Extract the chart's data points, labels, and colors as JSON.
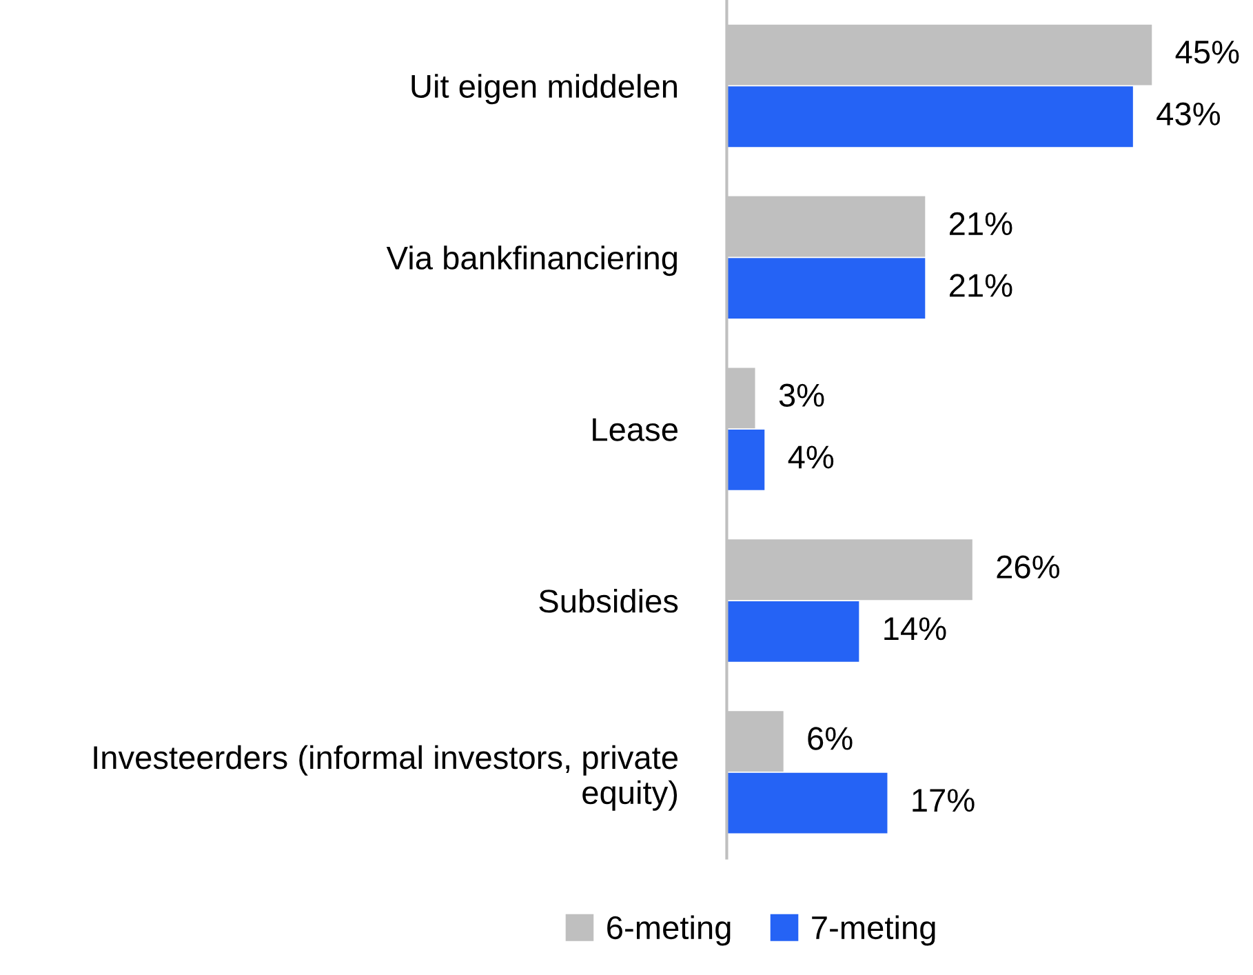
{
  "chart_data": {
    "type": "bar",
    "orientation": "horizontal",
    "categories": [
      "Uit eigen middelen",
      "Via bankfinanciering",
      "Lease",
      "Subsidies",
      "Investeerders (informal investors, private equity)"
    ],
    "series": [
      {
        "name": "6-meting",
        "color": "#bfbfbf",
        "values": [
          45,
          21,
          3,
          26,
          6
        ],
        "value_labels": [
          "45%",
          "21%",
          "3%",
          "26%",
          "6%"
        ]
      },
      {
        "name": "7-meting",
        "color": "#2563f5",
        "values": [
          43,
          21,
          4,
          14,
          17
        ],
        "value_labels": [
          "43%",
          "21%",
          "4%",
          "14%",
          "17%"
        ]
      }
    ],
    "legend": "bottom",
    "grid": false
  }
}
